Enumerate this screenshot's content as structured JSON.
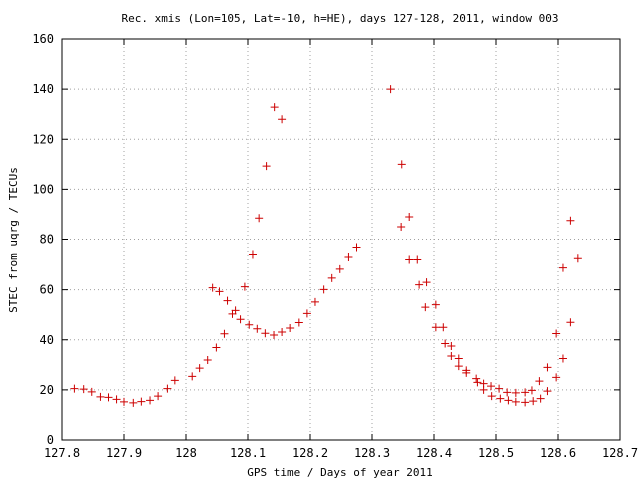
{
  "chart_data": {
    "type": "scatter",
    "title": "Rec. xmis (Lon=105, Lat=-10, h=HE), days 127-128, 2011, window 003",
    "xlabel": "GPS time / Days of year 2011",
    "ylabel": "STEC from uqrg / TECUs",
    "xlim": [
      127.8,
      128.7
    ],
    "ylim": [
      0,
      160
    ],
    "xticks": [
      "127.8",
      "127.9",
      "128",
      "128.1",
      "128.2",
      "128.3",
      "128.4",
      "128.5",
      "128.6",
      "128.7"
    ],
    "yticks": [
      "0",
      "20",
      "40",
      "60",
      "80",
      "100",
      "120",
      "140",
      "160"
    ],
    "grid": true,
    "marker": "+",
    "color": "#cc0000",
    "series": [
      {
        "points": [
          [
            127.82,
            20.5
          ],
          [
            127.835,
            20.3
          ],
          [
            127.848,
            19.2
          ],
          [
            127.862,
            17.2
          ],
          [
            127.875,
            17.0
          ],
          [
            127.888,
            16.2
          ],
          [
            127.9,
            15.2
          ],
          [
            127.915,
            14.8
          ],
          [
            127.928,
            15.3
          ],
          [
            127.942,
            15.8
          ],
          [
            127.955,
            17.5
          ],
          [
            127.97,
            20.5
          ],
          [
            127.982,
            23.8
          ],
          [
            128.01,
            25.4
          ],
          [
            128.022,
            28.7
          ],
          [
            128.035,
            31.9
          ],
          [
            128.049,
            36.9
          ],
          [
            128.062,
            42.4
          ],
          [
            128.075,
            50.3
          ],
          [
            128.088,
            48.2
          ],
          [
            128.102,
            46.0
          ],
          [
            128.115,
            44.4
          ],
          [
            128.128,
            42.6
          ],
          [
            128.142,
            41.9
          ],
          [
            128.155,
            43.1
          ],
          [
            128.168,
            44.7
          ],
          [
            128.182,
            46.9
          ],
          [
            128.195,
            50.5
          ],
          [
            128.208,
            55.1
          ],
          [
            128.222,
            60.1
          ],
          [
            128.235,
            64.7
          ],
          [
            128.248,
            68.3
          ],
          [
            128.262,
            73.0
          ],
          [
            128.275,
            76.8
          ],
          [
            128.043,
            60.8
          ],
          [
            128.054,
            59.3
          ],
          [
            128.067,
            55.6
          ],
          [
            128.08,
            51.7
          ],
          [
            128.095,
            61.2
          ],
          [
            128.108,
            74.0
          ],
          [
            128.118,
            88.5
          ],
          [
            128.13,
            109.3
          ],
          [
            128.143,
            132.8
          ],
          [
            128.155,
            128.0
          ],
          [
            128.33,
            140.0
          ],
          [
            128.348,
            110.0
          ],
          [
            128.347,
            85.0
          ],
          [
            128.36,
            89.0
          ],
          [
            128.36,
            72.0
          ],
          [
            128.373,
            72.0
          ],
          [
            128.376,
            62.0
          ],
          [
            128.388,
            63.0
          ],
          [
            128.386,
            53.0
          ],
          [
            128.403,
            54.0
          ],
          [
            128.403,
            45.0
          ],
          [
            128.415,
            45.0
          ],
          [
            128.418,
            38.5
          ],
          [
            128.428,
            37.5
          ],
          [
            128.428,
            33.5
          ],
          [
            128.44,
            32.5
          ],
          [
            128.44,
            29.5
          ],
          [
            128.452,
            27.8
          ],
          [
            128.452,
            26.8
          ],
          [
            128.468,
            24.5
          ],
          [
            128.47,
            23.0
          ],
          [
            128.48,
            22.5
          ],
          [
            128.48,
            20.0
          ],
          [
            128.492,
            21.5
          ],
          [
            128.493,
            17.5
          ],
          [
            128.505,
            20.5
          ],
          [
            128.507,
            16.5
          ],
          [
            128.518,
            19.0
          ],
          [
            128.52,
            15.8
          ],
          [
            128.532,
            18.8
          ],
          [
            128.532,
            15.2
          ],
          [
            128.547,
            19.0
          ],
          [
            128.547,
            15.0
          ],
          [
            128.558,
            19.8
          ],
          [
            128.56,
            15.5
          ],
          [
            128.57,
            23.5
          ],
          [
            128.572,
            16.5
          ],
          [
            128.583,
            29.0
          ],
          [
            128.583,
            19.5
          ],
          [
            128.597,
            42.5
          ],
          [
            128.597,
            25.0
          ],
          [
            128.608,
            68.8
          ],
          [
            128.608,
            32.5
          ],
          [
            128.62,
            87.5
          ],
          [
            128.62,
            47.0
          ],
          [
            128.632,
            72.5
          ]
        ]
      }
    ]
  }
}
